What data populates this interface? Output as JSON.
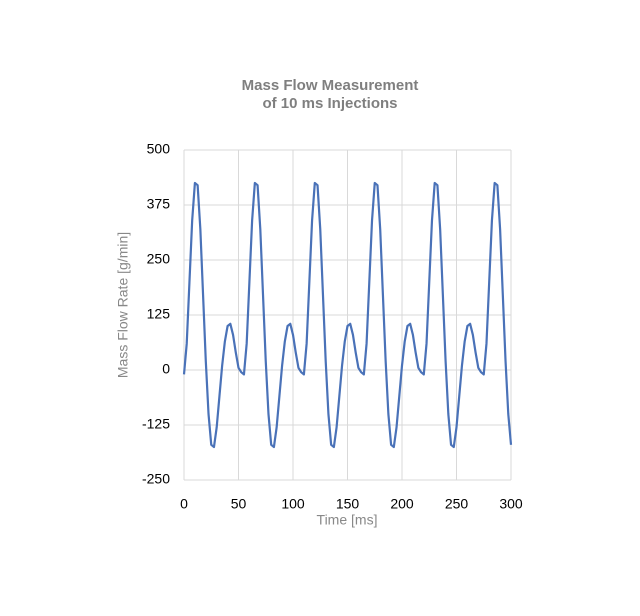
{
  "chart_data": {
    "type": "line",
    "title": [
      "Mass Flow Measurement",
      "of 10 ms Injections"
    ],
    "x_label": "Time [ms]",
    "y_label": "Mass Flow Rate [g/min]",
    "x": [
      0,
      2.5,
      5,
      7.5,
      10,
      12.5,
      15,
      17.5,
      20,
      22.5,
      25,
      27.5,
      30,
      32.5,
      35,
      37.5,
      40,
      42.5,
      45,
      47.5,
      50,
      52.5,
      55,
      57.5,
      60,
      62.5,
      65,
      67.5,
      70,
      72.5,
      75,
      77.5,
      80,
      82.5,
      85,
      87.5,
      90,
      92.5,
      95,
      97.5,
      100,
      102.5,
      105,
      107.5,
      110,
      112.5,
      115,
      117.5,
      120,
      122.5,
      125,
      127.5,
      130,
      132.5,
      135,
      137.5,
      140,
      142.5,
      145,
      147.5,
      150,
      152.5,
      155,
      157.5,
      160,
      162.5,
      165,
      167.5,
      170,
      172.5,
      175,
      177.5,
      180,
      182.5,
      185,
      187.5,
      190,
      192.5,
      195,
      197.5,
      200,
      202.5,
      205,
      207.5,
      210,
      212.5,
      215,
      217.5,
      220,
      222.5,
      225,
      227.5,
      230,
      232.5,
      235,
      237.5,
      240,
      242.5,
      245,
      247.5,
      250,
      252.5,
      255,
      257.5,
      260,
      262.5,
      265,
      267.5,
      270,
      272.5,
      275,
      277.5,
      280,
      282.5,
      285,
      287.5,
      290,
      292.5,
      295,
      297.5,
      300
    ],
    "series": [
      {
        "name": "Mass Flow",
        "color": "#4a72b8",
        "values": [
          -10,
          60,
          200,
          340,
          425,
          420,
          320,
          170,
          20,
          -100,
          -170,
          -175,
          -130,
          -60,
          10,
          65,
          100,
          105,
          80,
          40,
          5,
          -5,
          -10,
          60,
          200,
          340,
          425,
          420,
          320,
          170,
          20,
          -100,
          -170,
          -175,
          -130,
          -60,
          10,
          65,
          100,
          105,
          80,
          40,
          5,
          -5,
          -10,
          60,
          200,
          340,
          425,
          420,
          320,
          170,
          20,
          -100,
          -170,
          -175,
          -130,
          -60,
          10,
          65,
          100,
          105,
          80,
          40,
          5,
          -5,
          -10,
          60,
          200,
          340,
          425,
          420,
          320,
          170,
          20,
          -100,
          -170,
          -175,
          -130,
          -60,
          10,
          65,
          100,
          105,
          80,
          40,
          5,
          -5,
          -10,
          60,
          200,
          340,
          425,
          420,
          320,
          170,
          20,
          -100,
          -170,
          -175,
          -130,
          -60,
          10,
          65,
          100,
          105,
          80,
          40,
          5,
          -5,
          -10,
          60,
          200,
          340,
          425,
          420,
          320,
          170,
          20,
          -100,
          -170
        ]
      }
    ],
    "xlim": [
      0,
      300
    ],
    "xticks": [
      0,
      50,
      100,
      150,
      200,
      250,
      300
    ],
    "ylim": [
      -250,
      500
    ],
    "yticks": [
      -250,
      -125,
      0,
      125,
      250,
      375,
      500
    ],
    "grid": true
  }
}
